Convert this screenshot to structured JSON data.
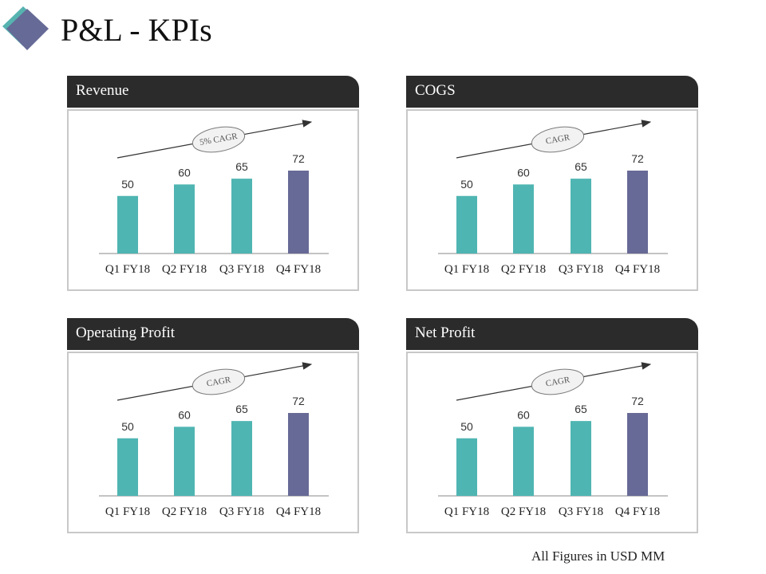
{
  "page": {
    "title": "P&L - KPIs",
    "footnote": "All Figures in USD MM",
    "colors": {
      "accent_teal": "#4fb5b2",
      "accent_purple": "#676a96",
      "header_dark": "#2b2b2b",
      "logo_teal": "#56b3b0",
      "logo_purple": "#666a96"
    }
  },
  "panels": [
    {
      "header": "Revenue",
      "cagr_label": "5% CAGR",
      "chart_data": {
        "type": "bar",
        "categories": [
          "Q1 FY18",
          "Q2 FY18",
          "Q3 FY18",
          "Q4 FY18"
        ],
        "values": [
          50,
          60,
          65,
          72
        ],
        "highlight_index": 3,
        "ylim": [
          0,
          72
        ]
      }
    },
    {
      "header": "COGS",
      "cagr_label": "CAGR",
      "chart_data": {
        "type": "bar",
        "categories": [
          "Q1 FY18",
          "Q2 FY18",
          "Q3 FY18",
          "Q4 FY18"
        ],
        "values": [
          50,
          60,
          65,
          72
        ],
        "highlight_index": 3,
        "ylim": [
          0,
          72
        ]
      }
    },
    {
      "header": "Operating Profit",
      "cagr_label": "CAGR",
      "chart_data": {
        "type": "bar",
        "categories": [
          "Q1 FY18",
          "Q2 FY18",
          "Q3 FY18",
          "Q4 FY18"
        ],
        "values": [
          50,
          60,
          65,
          72
        ],
        "highlight_index": 3,
        "ylim": [
          0,
          72
        ]
      }
    },
    {
      "header": "Net Profit",
      "cagr_label": "CAGR",
      "chart_data": {
        "type": "bar",
        "categories": [
          "Q1 FY18",
          "Q2 FY18",
          "Q3 FY18",
          "Q4 FY18"
        ],
        "values": [
          50,
          60,
          65,
          72
        ],
        "highlight_index": 3,
        "ylim": [
          0,
          72
        ]
      }
    }
  ]
}
